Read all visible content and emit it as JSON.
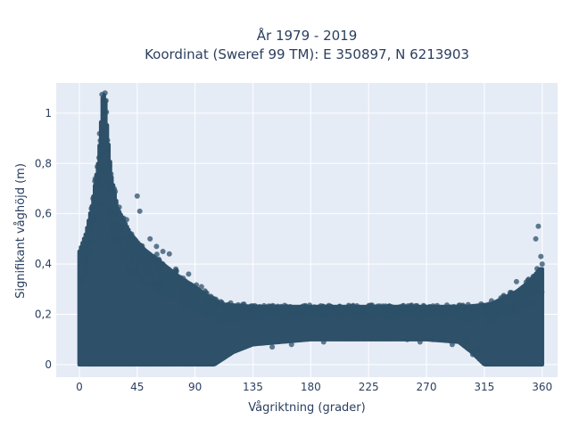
{
  "chart_data": {
    "type": "scatter",
    "title_line1": "År 1979 - 2019",
    "title_line2": "Koordinat (Sweref 99 TM): E 350897, N 6213903",
    "xlabel": "Vågriktning (grader)",
    "ylabel": "Signifikant våghöjd (m)",
    "xlim": [
      -18,
      372
    ],
    "ylim": [
      -0.05,
      1.12
    ],
    "x_ticks": [
      0,
      45,
      90,
      135,
      180,
      225,
      270,
      315,
      360
    ],
    "x_tick_labels": [
      "0",
      "45",
      "90",
      "135",
      "180",
      "225",
      "270",
      "315",
      "360"
    ],
    "y_ticks": [
      0,
      0.2,
      0.4,
      0.6,
      0.8,
      1
    ],
    "y_tick_labels": [
      "0",
      "0,2",
      "0,4",
      "0,6",
      "0,8",
      "1"
    ],
    "grid": true,
    "marker_color": "#2e5069",
    "plot_bg": "#e5ecf6",
    "envelope": [
      {
        "x": 0,
        "y": 0.45
      },
      {
        "x": 5,
        "y": 0.52
      },
      {
        "x": 10,
        "y": 0.64
      },
      {
        "x": 15,
        "y": 0.82
      },
      {
        "x": 18,
        "y": 1.06
      },
      {
        "x": 20,
        "y": 1.08
      },
      {
        "x": 22,
        "y": 0.92
      },
      {
        "x": 25,
        "y": 0.75
      },
      {
        "x": 30,
        "y": 0.62
      },
      {
        "x": 40,
        "y": 0.52
      },
      {
        "x": 50,
        "y": 0.46
      },
      {
        "x": 60,
        "y": 0.42
      },
      {
        "x": 70,
        "y": 0.38
      },
      {
        "x": 80,
        "y": 0.34
      },
      {
        "x": 90,
        "y": 0.31
      },
      {
        "x": 100,
        "y": 0.27
      },
      {
        "x": 110,
        "y": 0.24
      },
      {
        "x": 135,
        "y": 0.23
      },
      {
        "x": 180,
        "y": 0.23
      },
      {
        "x": 225,
        "y": 0.23
      },
      {
        "x": 270,
        "y": 0.23
      },
      {
        "x": 300,
        "y": 0.23
      },
      {
        "x": 320,
        "y": 0.24
      },
      {
        "x": 340,
        "y": 0.29
      },
      {
        "x": 350,
        "y": 0.33
      },
      {
        "x": 358,
        "y": 0.38
      }
    ],
    "lower_envelope": [
      {
        "x": 0,
        "y": 0.0
      },
      {
        "x": 105,
        "y": 0.0
      },
      {
        "x": 120,
        "y": 0.05
      },
      {
        "x": 135,
        "y": 0.08
      },
      {
        "x": 180,
        "y": 0.1
      },
      {
        "x": 225,
        "y": 0.1
      },
      {
        "x": 270,
        "y": 0.1
      },
      {
        "x": 295,
        "y": 0.09
      },
      {
        "x": 305,
        "y": 0.05
      },
      {
        "x": 315,
        "y": 0.0
      },
      {
        "x": 360,
        "y": 0.0
      }
    ],
    "outliers": [
      {
        "x": 20,
        "y": 1.08
      },
      {
        "x": 45,
        "y": 0.67
      },
      {
        "x": 47,
        "y": 0.61
      },
      {
        "x": 55,
        "y": 0.5
      },
      {
        "x": 60,
        "y": 0.47
      },
      {
        "x": 65,
        "y": 0.45
      },
      {
        "x": 70,
        "y": 0.44
      },
      {
        "x": 75,
        "y": 0.38
      },
      {
        "x": 85,
        "y": 0.36
      },
      {
        "x": 95,
        "y": 0.31
      },
      {
        "x": 100,
        "y": 0.27
      },
      {
        "x": 105,
        "y": 0.26
      },
      {
        "x": 110,
        "y": 0.25
      },
      {
        "x": 150,
        "y": 0.07
      },
      {
        "x": 165,
        "y": 0.08
      },
      {
        "x": 190,
        "y": 0.09
      },
      {
        "x": 255,
        "y": 0.1
      },
      {
        "x": 265,
        "y": 0.09
      },
      {
        "x": 275,
        "y": 0.1
      },
      {
        "x": 283,
        "y": 0.1
      },
      {
        "x": 290,
        "y": 0.08
      },
      {
        "x": 300,
        "y": 0.1
      },
      {
        "x": 306,
        "y": 0.04
      },
      {
        "x": 310,
        "y": 0.06
      },
      {
        "x": 320,
        "y": 0.23
      },
      {
        "x": 330,
        "y": 0.27
      },
      {
        "x": 340,
        "y": 0.33
      },
      {
        "x": 355,
        "y": 0.5
      },
      {
        "x": 357,
        "y": 0.55
      },
      {
        "x": 359,
        "y": 0.43
      },
      {
        "x": 360,
        "y": 0.4
      }
    ]
  }
}
